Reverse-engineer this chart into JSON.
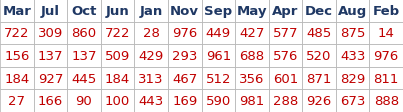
{
  "headers": [
    "Mar",
    "Jul",
    "Oct",
    "Jun",
    "Jan",
    "Nov",
    "Sep",
    "May",
    "Apr",
    "Dec",
    "Aug",
    "Feb"
  ],
  "rows": [
    [
      722,
      309,
      860,
      722,
      28,
      976,
      449,
      427,
      577,
      485,
      875,
      14
    ],
    [
      156,
      137,
      137,
      509,
      429,
      293,
      961,
      688,
      576,
      520,
      433,
      976
    ],
    [
      184,
      927,
      445,
      184,
      313,
      467,
      512,
      356,
      601,
      871,
      829,
      811
    ],
    [
      27,
      166,
      90,
      100,
      443,
      169,
      590,
      981,
      288,
      926,
      673,
      888
    ]
  ],
  "header_text_color": "#1f3864",
  "row_text_color": "#c00000",
  "grid_color": "#b0b0b0",
  "bg_color": "#ffffff",
  "header_font_size": 9.5,
  "row_font_size": 9.5,
  "figsize": [
    4.03,
    1.13
  ],
  "dpi": 100
}
